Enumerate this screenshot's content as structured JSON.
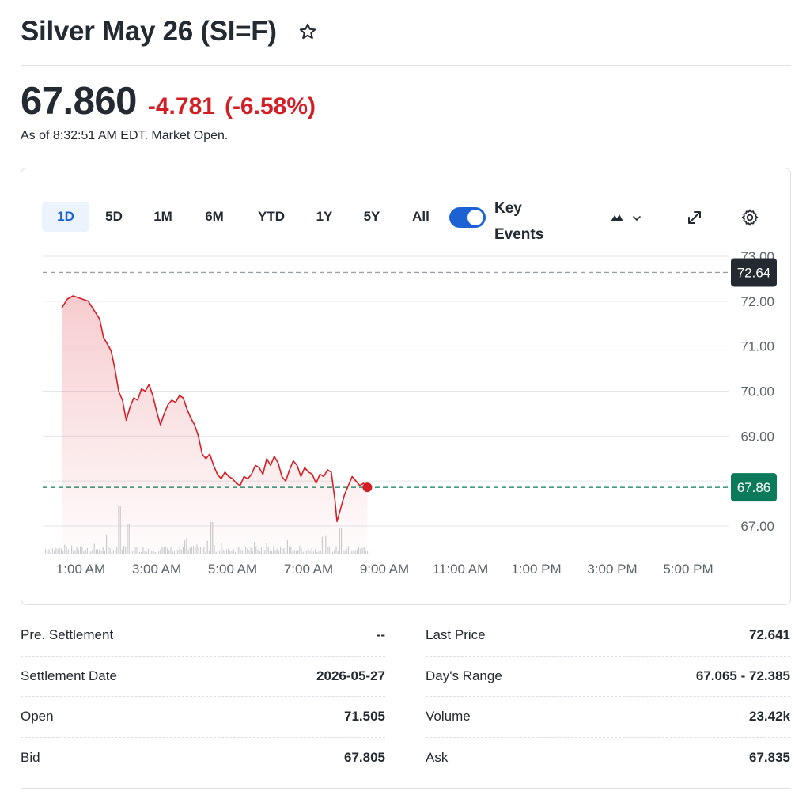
{
  "header": {
    "title": "Silver May 26 (SI=F)",
    "star_icon": "star-icon"
  },
  "quote": {
    "price": "67.860",
    "change": "-4.781",
    "change_percent": "(-6.58%)",
    "as_of": "As of 8:32:51 AM EDT. Market Open.",
    "change_color": "#d21f26"
  },
  "chart_controls": {
    "ranges": [
      "1D",
      "5D",
      "1M",
      "6M",
      "YTD",
      "1Y",
      "5Y",
      "All"
    ],
    "active_range": "1D",
    "key_events_label": "Key Events",
    "key_events_on": true,
    "chart_type_icon": "mountain-chart-icon",
    "expand_icon": "expand-icon",
    "settings_icon": "gear-icon",
    "accent_color": "#1d62d5"
  },
  "chart_data": {
    "type": "area",
    "y_ticks": [
      "73.00",
      "72.00",
      "71.00",
      "70.00",
      "69.00",
      "67.00"
    ],
    "x_ticks": [
      "1:00 AM",
      "3:00 AM",
      "5:00 AM",
      "7:00 AM",
      "9:00 AM",
      "11:00 AM",
      "1:00 PM",
      "3:00 PM",
      "5:00 PM"
    ],
    "ylim": [
      66.0,
      73.1
    ],
    "previous_close": 72.64,
    "previous_close_label": "72.64",
    "current": 67.86,
    "current_label": "67.86",
    "series": [
      {
        "values": [
          [
            0.5,
            71.85
          ],
          [
            0.65,
            72.05
          ],
          [
            0.8,
            72.12
          ],
          [
            1.0,
            72.06
          ],
          [
            1.2,
            72.0
          ],
          [
            1.35,
            71.8
          ],
          [
            1.5,
            71.6
          ],
          [
            1.6,
            71.2
          ],
          [
            1.7,
            71.05
          ],
          [
            1.8,
            70.9
          ],
          [
            1.9,
            70.5
          ],
          [
            2.0,
            70.0
          ],
          [
            2.1,
            69.8
          ],
          [
            2.2,
            69.35
          ],
          [
            2.3,
            69.65
          ],
          [
            2.4,
            69.85
          ],
          [
            2.5,
            69.8
          ],
          [
            2.6,
            70.05
          ],
          [
            2.7,
            70.0
          ],
          [
            2.8,
            70.15
          ],
          [
            2.9,
            69.9
          ],
          [
            3.0,
            69.55
          ],
          [
            3.1,
            69.25
          ],
          [
            3.2,
            69.5
          ],
          [
            3.3,
            69.7
          ],
          [
            3.4,
            69.8
          ],
          [
            3.5,
            69.75
          ],
          [
            3.6,
            69.9
          ],
          [
            3.7,
            69.85
          ],
          [
            3.8,
            69.6
          ],
          [
            3.9,
            69.4
          ],
          [
            4.0,
            69.25
          ],
          [
            4.1,
            69.0
          ],
          [
            4.2,
            68.6
          ],
          [
            4.3,
            68.5
          ],
          [
            4.4,
            68.6
          ],
          [
            4.5,
            68.35
          ],
          [
            4.6,
            68.15
          ],
          [
            4.7,
            68.05
          ],
          [
            4.8,
            68.2
          ],
          [
            4.9,
            68.1
          ],
          [
            5.0,
            68.05
          ],
          [
            5.1,
            67.95
          ],
          [
            5.2,
            67.9
          ],
          [
            5.3,
            68.1
          ],
          [
            5.4,
            68.05
          ],
          [
            5.5,
            68.15
          ],
          [
            5.6,
            68.35
          ],
          [
            5.7,
            68.3
          ],
          [
            5.8,
            68.15
          ],
          [
            5.9,
            68.5
          ],
          [
            6.0,
            68.35
          ],
          [
            6.1,
            68.55
          ],
          [
            6.2,
            68.4
          ],
          [
            6.3,
            68.1
          ],
          [
            6.4,
            68.0
          ],
          [
            6.5,
            68.25
          ],
          [
            6.6,
            68.45
          ],
          [
            6.7,
            68.35
          ],
          [
            6.8,
            68.1
          ],
          [
            6.9,
            68.3
          ],
          [
            7.0,
            68.2
          ],
          [
            7.1,
            68.15
          ],
          [
            7.2,
            67.95
          ],
          [
            7.3,
            68.15
          ],
          [
            7.4,
            68.1
          ],
          [
            7.5,
            68.25
          ],
          [
            7.6,
            68.2
          ],
          [
            7.7,
            67.55
          ],
          [
            7.75,
            67.1
          ],
          [
            7.85,
            67.4
          ],
          [
            7.95,
            67.7
          ],
          [
            8.05,
            67.9
          ],
          [
            8.15,
            68.1
          ],
          [
            8.25,
            68.0
          ],
          [
            8.35,
            67.9
          ],
          [
            8.45,
            67.95
          ],
          [
            8.55,
            67.86
          ]
        ]
      }
    ],
    "line_color": "#d21f26",
    "current_badge_color": "#0a7a5a",
    "previous_badge_color": "#232a31"
  },
  "stats": {
    "left": [
      {
        "label": "Pre. Settlement",
        "value": "--"
      },
      {
        "label": "Settlement Date",
        "value": "2026-05-27"
      },
      {
        "label": "Open",
        "value": "71.505"
      },
      {
        "label": "Bid",
        "value": "67.805"
      }
    ],
    "right": [
      {
        "label": "Last Price",
        "value": "72.641"
      },
      {
        "label": "Day's Range",
        "value": "67.065 - 72.385"
      },
      {
        "label": "Volume",
        "value": "23.42k"
      },
      {
        "label": "Ask",
        "value": "67.835"
      }
    ]
  }
}
